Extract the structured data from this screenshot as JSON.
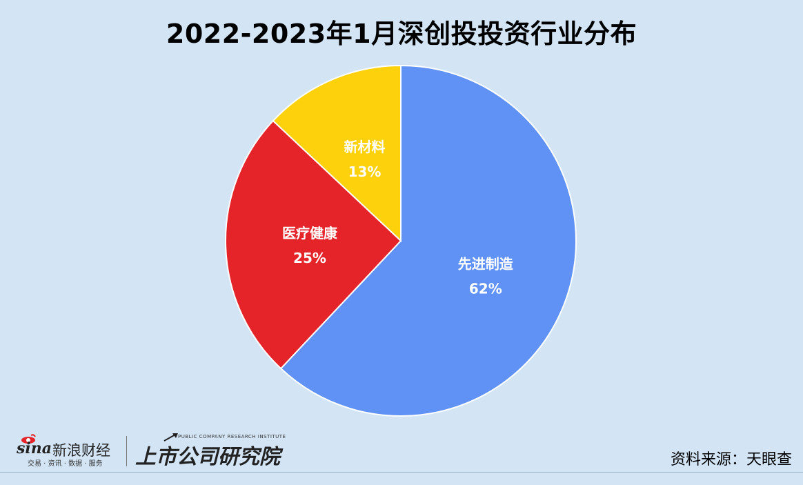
{
  "title": "2022-2023年1月深创投投资行业分布",
  "source_label": "资料来源：天眼查",
  "branding": {
    "sina_word": "sina",
    "sina_cn": "新浪财经",
    "sina_sub": "交易 · 资讯 · 数据 · 服务",
    "inst_en": "PUBLIC COMPANY RESEARCH INSTITUTE",
    "inst_cn": "上市公司研究院"
  },
  "chart_data": {
    "type": "pie",
    "title": "2022-2023年1月深创投投资行业分布",
    "slices": [
      {
        "label": "先进制造",
        "value": 62,
        "value_label": "62%",
        "color": "#6092f6"
      },
      {
        "label": "医疗健康",
        "value": 25,
        "value_label": "25%",
        "color": "#e5242a"
      },
      {
        "label": "新材料",
        "value": 13,
        "value_label": "13%",
        "color": "#fdd10b"
      }
    ],
    "start_angle": "12 o'clock",
    "direction": "clockwise",
    "legend": "none",
    "labels": "inside"
  },
  "colors": {
    "background": "#d3e5f5",
    "slice_border": "#ffffff",
    "label_text": "#ffffff"
  }
}
